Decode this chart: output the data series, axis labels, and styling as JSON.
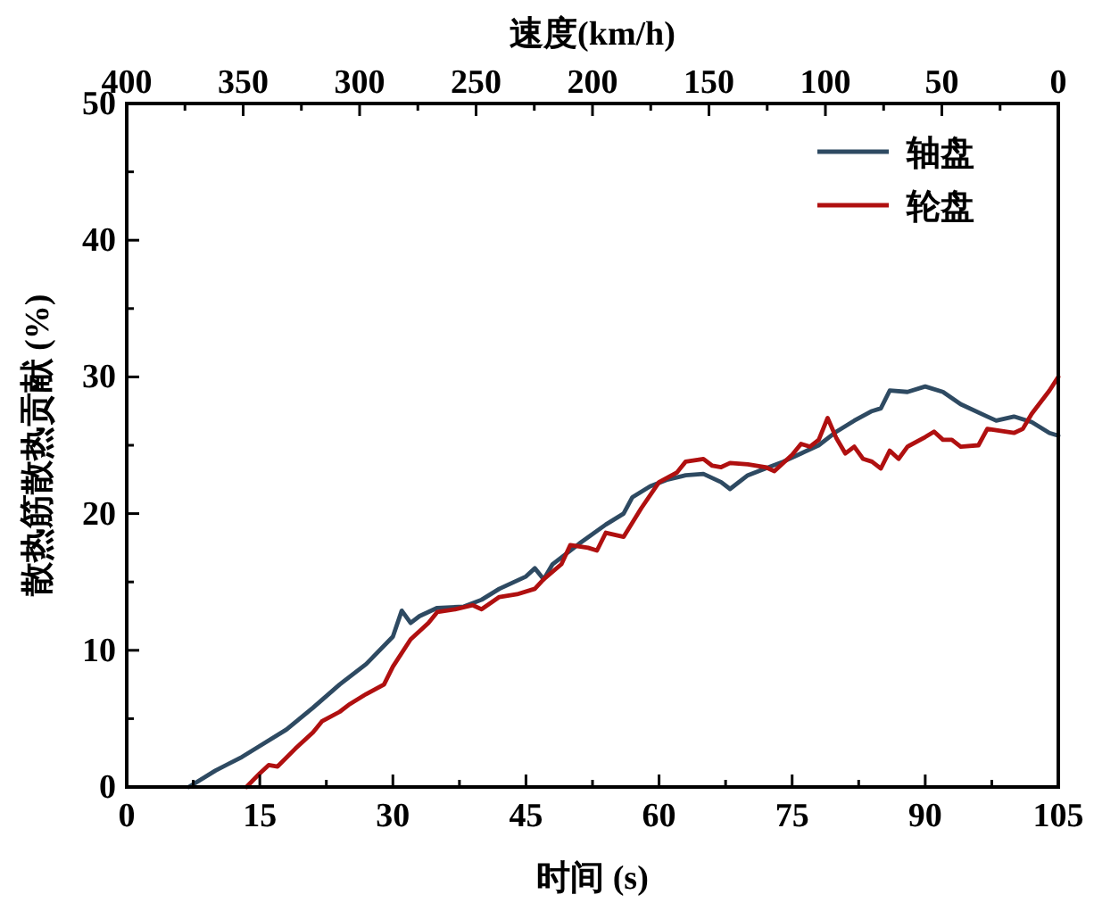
{
  "chart_data": {
    "type": "line",
    "xlabel": "时间 (s)",
    "ylabel": "散热筋散热贡献 (%)",
    "x2label": "速度(km/h)",
    "xlim": [
      0,
      105
    ],
    "xticks": [
      0,
      {
        "value": 7.5,
        "label": null
      },
      15,
      {
        "value": 22.5,
        "label": null
      },
      30,
      {
        "value": 37.5,
        "label": null
      },
      45,
      {
        "value": 52.5,
        "label": null
      },
      60,
      {
        "value": 67.5,
        "label": null
      },
      75,
      {
        "value": 82.5,
        "label": null
      },
      90,
      {
        "value": 97.5,
        "label": null
      },
      105
    ],
    "ylim": [
      0,
      50
    ],
    "yticks": [
      0,
      {
        "value": 5,
        "label": null
      },
      10,
      {
        "value": 15,
        "label": null
      },
      20,
      {
        "value": 25,
        "label": null
      },
      30,
      {
        "value": 35,
        "label": null
      },
      40,
      {
        "value": 45,
        "label": null
      },
      50
    ],
    "x2lim": [
      400,
      0
    ],
    "x2ticks": [
      400,
      {
        "value": 375,
        "label": null
      },
      350,
      {
        "value": 325,
        "label": null
      },
      300,
      {
        "value": 275,
        "label": null
      },
      250,
      {
        "value": 225,
        "label": null
      },
      200,
      {
        "value": 175,
        "label": null
      },
      150,
      {
        "value": 125,
        "label": null
      },
      100,
      {
        "value": 75,
        "label": null
      },
      50,
      {
        "value": 25,
        "label": null
      },
      0
    ],
    "grid": false,
    "legend": "top right",
    "marker": "none",
    "line_style": "solid",
    "series": [
      {
        "name": "轴盘",
        "color": "#2e4a62",
        "x": [
          7,
          10,
          13,
          15,
          18,
          21,
          24,
          27,
          30,
          31,
          32,
          33,
          35,
          38,
          40,
          42,
          45,
          46,
          47,
          48,
          51,
          54,
          56,
          57,
          59,
          61,
          63,
          65,
          67,
          68,
          70,
          72,
          74,
          76,
          78,
          80,
          82,
          84,
          85,
          86,
          88,
          90,
          92,
          94,
          97,
          98,
          100,
          102,
          104,
          105
        ],
        "values": [
          0,
          1.2,
          2.2,
          3,
          4.2,
          5.8,
          7.5,
          9,
          11,
          12.9,
          12,
          12.5,
          13.1,
          13.2,
          13.7,
          14.5,
          15.4,
          16,
          15.2,
          16.3,
          17.8,
          19.2,
          20,
          21.2,
          22,
          22.5,
          22.8,
          22.9,
          22.3,
          21.8,
          22.8,
          23.3,
          23.8,
          24.4,
          25,
          26,
          26.8,
          27.5,
          27.7,
          29,
          28.9,
          29.3,
          28.9,
          28,
          27.1,
          26.8,
          27.1,
          26.7,
          25.9,
          25.7
        ]
      },
      {
        "name": "轮盘",
        "color": "#b01010",
        "x": [
          13.5,
          15,
          16,
          17,
          19,
          21,
          22,
          24,
          25,
          27,
          29,
          30,
          32,
          34,
          35,
          37,
          39,
          40,
          42,
          44,
          46,
          47,
          49,
          50,
          52,
          53,
          54,
          56,
          58,
          60,
          62,
          63,
          65,
          66,
          67,
          68,
          70,
          72,
          73,
          75,
          76,
          77,
          78,
          79,
          80,
          81,
          82,
          83,
          84,
          85,
          86,
          87,
          88,
          90,
          91,
          92,
          93,
          94,
          96,
          97,
          99,
          100,
          101,
          102,
          104,
          105
        ],
        "values": [
          0,
          1,
          1.6,
          1.5,
          2.8,
          4,
          4.8,
          5.5,
          6,
          6.8,
          7.5,
          8.8,
          10.8,
          12,
          12.8,
          13,
          13.3,
          13,
          13.9,
          14.1,
          14.5,
          15.2,
          16.3,
          17.7,
          17.5,
          17.3,
          18.6,
          18.3,
          20.4,
          22.3,
          23,
          23.8,
          24,
          23.5,
          23.4,
          23.7,
          23.6,
          23.4,
          23.1,
          24.3,
          25.1,
          24.9,
          25.4,
          27,
          25.5,
          24.4,
          24.9,
          24,
          23.8,
          23.3,
          24.6,
          24,
          24.9,
          25.6,
          26,
          25.4,
          25.4,
          24.9,
          25,
          26.2,
          26,
          25.9,
          26.2,
          27.3,
          29,
          30
        ]
      }
    ]
  }
}
